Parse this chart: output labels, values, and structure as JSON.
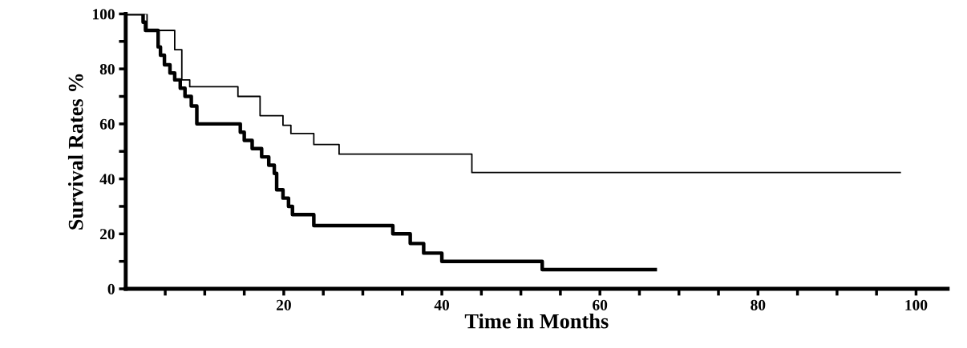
{
  "chart_data": {
    "type": "step",
    "xlabel": "Time in Months",
    "ylabel": "Survival Rates %",
    "xlim": [
      0,
      104
    ],
    "ylim": [
      0,
      100
    ],
    "xticks": [
      {
        "value": 5,
        "label": null
      },
      {
        "value": 10,
        "label": null
      },
      {
        "value": 15,
        "label": null
      },
      20,
      {
        "value": 25,
        "label": null
      },
      {
        "value": 30,
        "label": null
      },
      {
        "value": 35,
        "label": null
      },
      40,
      {
        "value": 45,
        "label": null
      },
      {
        "value": 50,
        "label": null
      },
      {
        "value": 55,
        "label": null
      },
      60,
      {
        "value": 65,
        "label": null
      },
      {
        "value": 70,
        "label": null
      },
      {
        "value": 75,
        "label": null
      },
      80,
      {
        "value": 85,
        "label": null
      },
      {
        "value": 90,
        "label": null
      },
      {
        "value": 95,
        "label": null
      },
      100
    ],
    "yticks": [
      0,
      {
        "value": 10,
        "label": null
      },
      20,
      {
        "value": 30,
        "label": null
      },
      40,
      {
        "value": 50,
        "label": null
      },
      60,
      {
        "value": 70,
        "label": null
      },
      80,
      {
        "value": 90,
        "label": null
      },
      100
    ],
    "grid": false,
    "legend": false,
    "marker": "none",
    "line_style": "solid",
    "series": [
      {
        "color": "#000000",
        "x": [
          0,
          2.7,
          6.2,
          7.1,
          8.1,
          14.2,
          17.0,
          19.9,
          20.9,
          23.8,
          27.0,
          43.8,
          98
        ],
        "values": [
          100,
          94,
          87,
          76,
          73.5,
          70,
          63,
          59.5,
          56.5,
          52.5,
          49,
          42.3,
          42.3
        ]
      },
      {
        "color": "#000000",
        "x": [
          0,
          2.2,
          2.5,
          4.1,
          4.4,
          4.9,
          5.6,
          6.2,
          6.9,
          7.5,
          8.3,
          9.0,
          14.5,
          15.0,
          16.0,
          17.2,
          18.1,
          18.8,
          19.1,
          19.9,
          20.6,
          21.1,
          23.8,
          33.8,
          36.0,
          37.7,
          40.0,
          52.7,
          67
        ],
        "values": [
          100,
          97,
          94,
          88,
          85,
          81.5,
          78.5,
          76,
          73,
          70,
          66.5,
          60,
          57,
          54,
          51,
          48,
          45,
          42,
          36,
          33,
          30,
          27,
          23,
          20,
          16.5,
          13,
          10,
          7,
          7
        ]
      }
    ]
  }
}
